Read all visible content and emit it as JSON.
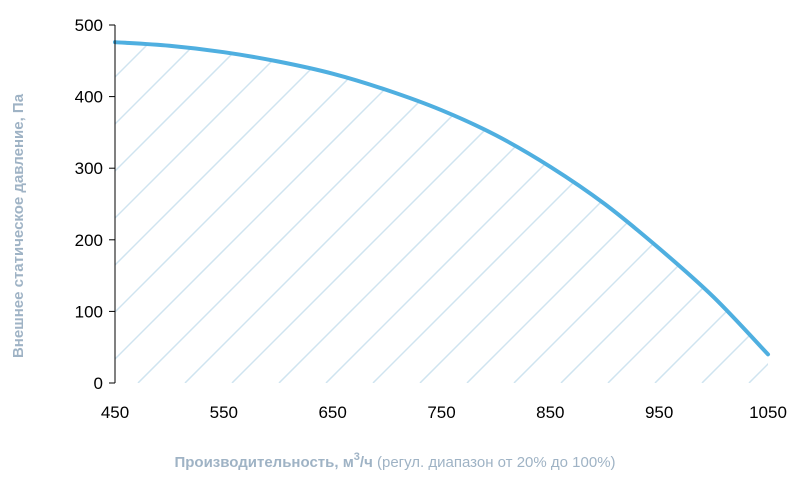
{
  "chart_data": {
    "type": "area",
    "x": [
      450,
      500,
      550,
      600,
      650,
      700,
      750,
      800,
      850,
      900,
      950,
      1000,
      1050
    ],
    "series": [
      {
        "values": [
          476,
          471,
          462,
          449,
          432,
          409,
          381,
          346,
          302,
          250,
          188,
          120,
          40
        ]
      }
    ],
    "xlim": [
      450,
      1050
    ],
    "ylim": [
      0,
      500
    ],
    "xticks": [
      "450",
      "550",
      "650",
      "750",
      "850",
      "950",
      "1050"
    ],
    "yticks": [
      "0",
      "100",
      "200",
      "300",
      "400",
      "500"
    ],
    "ylabel": "Внешнее статическое давление, Па",
    "xlabel_main": "Производительность, м",
    "xlabel_sup": "3",
    "xlabel_unit": "/ч",
    "xlabel_note": " (регул. диапазон от 20% до 100%)",
    "grid": false,
    "fill": "diagonal-hatch",
    "colors": {
      "line": "#4fafe0",
      "hatch": "#cfe4f0",
      "axis": "#000000",
      "label": "#9fb3c5"
    }
  }
}
